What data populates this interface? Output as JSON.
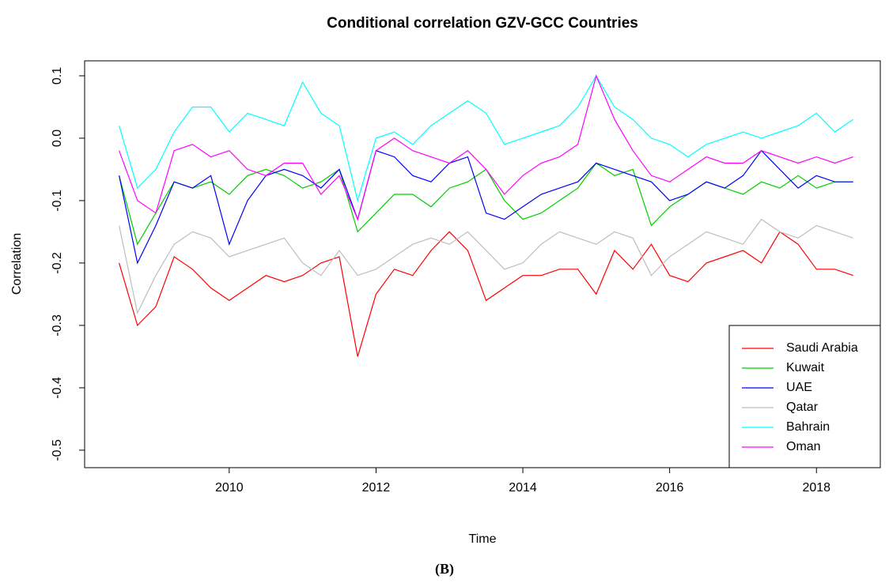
{
  "chart_data": {
    "type": "line",
    "title": "Conditional correlation GZV-GCC Countries",
    "x_label": "Time",
    "y_label": "Correlation",
    "caption": "(B)",
    "x": [
      2008.5,
      2008.75,
      2009,
      2009.25,
      2009.5,
      2009.75,
      2010,
      2010.25,
      2010.5,
      2010.75,
      2011,
      2011.25,
      2011.5,
      2011.75,
      2012,
      2012.25,
      2012.5,
      2012.75,
      2013,
      2013.25,
      2013.5,
      2013.75,
      2014,
      2014.25,
      2014.5,
      2014.75,
      2015,
      2015.25,
      2015.5,
      2015.75,
      2016,
      2016.25,
      2016.5,
      2016.75,
      2017,
      2017.25,
      2017.5,
      2017.75,
      2018,
      2018.25,
      2018.5
    ],
    "xlim": [
      2008.03,
      2018.87
    ],
    "xticks": [
      2010,
      2012,
      2014,
      2016,
      2018
    ],
    "ylim": [
      -0.528,
      0.124
    ],
    "yticks": [
      {
        "value": -0.5,
        "label": "-0.5"
      },
      -0.4,
      -0.3,
      -0.2,
      -0.1,
      {
        "value": 0,
        "label": "0.0"
      },
      0.1
    ],
    "legend": "bottomright",
    "series": [
      {
        "name": "Saudi Arabia",
        "color": "#ff0000",
        "values": [
          -0.2,
          -0.3,
          -0.27,
          -0.19,
          -0.21,
          -0.24,
          -0.26,
          -0.24,
          -0.22,
          -0.23,
          -0.22,
          -0.2,
          -0.19,
          -0.35,
          -0.25,
          -0.21,
          -0.22,
          -0.18,
          -0.15,
          -0.18,
          -0.26,
          -0.24,
          -0.22,
          -0.22,
          -0.21,
          -0.21,
          -0.25,
          -0.18,
          -0.21,
          -0.17,
          -0.22,
          -0.23,
          -0.2,
          -0.19,
          -0.18,
          -0.2,
          -0.15,
          -0.17,
          -0.21,
          -0.21,
          -0.22
        ]
      },
      {
        "name": "Kuwait",
        "color": "#00cd00",
        "values": [
          -0.06,
          -0.17,
          -0.12,
          -0.07,
          -0.08,
          -0.07,
          -0.09,
          -0.06,
          -0.05,
          -0.06,
          -0.08,
          -0.07,
          -0.05,
          -0.15,
          -0.12,
          -0.09,
          -0.09,
          -0.11,
          -0.08,
          -0.07,
          -0.05,
          -0.1,
          -0.13,
          -0.12,
          -0.1,
          -0.08,
          -0.04,
          -0.06,
          -0.05,
          -0.14,
          -0.11,
          -0.09,
          -0.07,
          -0.08,
          -0.09,
          -0.07,
          -0.08,
          -0.06,
          -0.08,
          -0.07,
          -0.07
        ]
      },
      {
        "name": "UAE",
        "color": "#0000ff",
        "values": [
          -0.06,
          -0.2,
          -0.14,
          -0.07,
          -0.08,
          -0.06,
          -0.17,
          -0.1,
          -0.06,
          -0.05,
          -0.06,
          -0.08,
          -0.05,
          -0.13,
          -0.02,
          -0.03,
          -0.06,
          -0.07,
          -0.04,
          -0.03,
          -0.12,
          -0.13,
          -0.11,
          -0.09,
          -0.08,
          -0.07,
          -0.04,
          -0.05,
          -0.06,
          -0.07,
          -0.1,
          -0.09,
          -0.07,
          -0.08,
          -0.06,
          -0.02,
          -0.05,
          -0.08,
          -0.06,
          -0.07,
          -0.07
        ]
      },
      {
        "name": "Qatar",
        "color": "#bebebe",
        "values": [
          -0.14,
          -0.28,
          -0.22,
          -0.17,
          -0.15,
          -0.16,
          -0.19,
          -0.18,
          -0.17,
          -0.16,
          -0.2,
          -0.22,
          -0.18,
          -0.22,
          -0.21,
          -0.19,
          -0.17,
          -0.16,
          -0.17,
          -0.15,
          -0.18,
          -0.21,
          -0.2,
          -0.17,
          -0.15,
          -0.16,
          -0.17,
          -0.15,
          -0.16,
          -0.22,
          -0.19,
          -0.17,
          -0.15,
          -0.16,
          -0.17,
          -0.13,
          -0.15,
          -0.16,
          -0.14,
          -0.15,
          -0.16
        ]
      },
      {
        "name": "Bahrain",
        "color": "#00ffff",
        "values": [
          0.02,
          -0.08,
          -0.05,
          0.01,
          0.05,
          0.05,
          0.01,
          0.04,
          0.03,
          0.02,
          0.09,
          0.04,
          0.02,
          -0.1,
          0.0,
          0.01,
          -0.01,
          0.02,
          0.04,
          0.06,
          0.04,
          -0.01,
          0.0,
          0.01,
          0.02,
          0.05,
          0.1,
          0.05,
          0.03,
          0.0,
          -0.01,
          -0.03,
          -0.01,
          0.0,
          0.01,
          0.0,
          0.01,
          0.02,
          0.04,
          0.01,
          0.03
        ]
      },
      {
        "name": "Oman",
        "color": "#ff00ff",
        "values": [
          -0.02,
          -0.1,
          -0.12,
          -0.02,
          -0.01,
          -0.03,
          -0.02,
          -0.05,
          -0.06,
          -0.04,
          -0.04,
          -0.09,
          -0.06,
          -0.13,
          -0.02,
          0.0,
          -0.02,
          -0.03,
          -0.04,
          -0.02,
          -0.05,
          -0.09,
          -0.06,
          -0.04,
          -0.03,
          -0.01,
          0.1,
          0.03,
          -0.02,
          -0.06,
          -0.07,
          -0.05,
          -0.03,
          -0.04,
          -0.04,
          -0.02,
          -0.03,
          -0.04,
          -0.03,
          -0.04,
          -0.03
        ]
      }
    ]
  }
}
